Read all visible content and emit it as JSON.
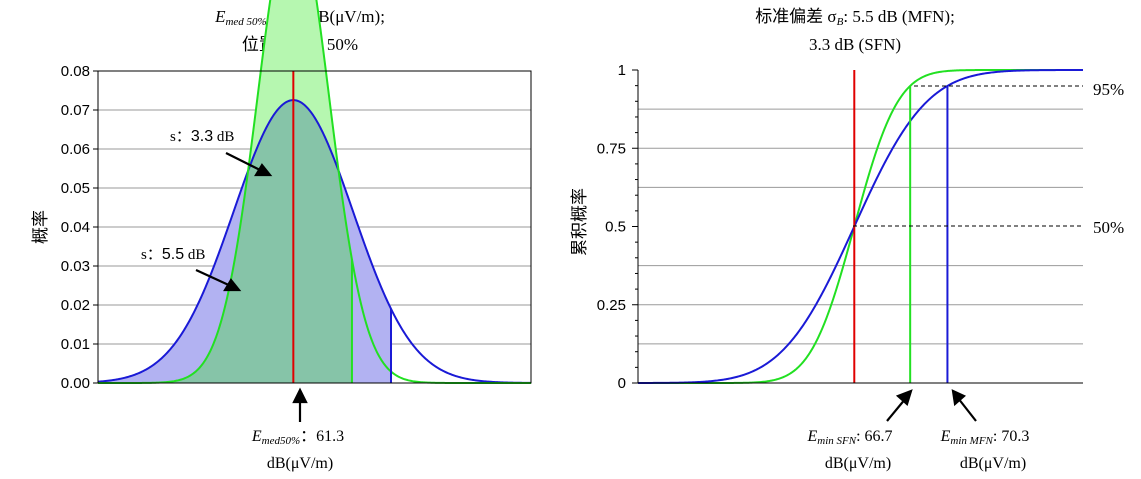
{
  "colors": {
    "red": "#e00000",
    "green": "#22e022",
    "blue": "#1a1ad6",
    "green_fill": "#b6f7b0",
    "blue_fill": "#b2b2f2",
    "overlap_fill": "#86c4a8",
    "grid": "#9a9a9a"
  },
  "chart_data": [
    {
      "type": "area",
      "title_line1": {
        "sym": "E",
        "sub": "med 50%",
        "value": ": 61.3 dB(μV/m);"
      },
      "title_line2": "位置概率：50%",
      "ylabel": "概率",
      "ylim": [
        0,
        0.08
      ],
      "yticks": [
        "0.00",
        "0.01",
        "0.02",
        "0.03",
        "0.04",
        "0.05",
        "0.06",
        "0.07",
        "0.08"
      ],
      "median": 61.3,
      "series": [
        {
          "name_prefix": "s：",
          "name_value": "3.3",
          "name_unit": " dB",
          "sigma": 3.3,
          "cut": 66.7
        },
        {
          "name_prefix": "s：",
          "name_value": "5.5",
          "name_unit": " dB",
          "sigma": 5.5,
          "cut": 70.3
        }
      ],
      "annotation": {
        "sym": "E",
        "sub": "med50%",
        "value": "：61.3",
        "unit": "dB(μV/m)"
      }
    },
    {
      "type": "line",
      "title_line1": {
        "prefix": "标准偏差 σ",
        "sub": "B",
        "value": ": 5.5 dB (MFN);"
      },
      "title_line2": "3.3 dB (SFN)",
      "ylabel": "累积概率",
      "ylim": [
        0,
        1
      ],
      "yticks": [
        "0",
        "0.25",
        "0.5",
        "0.75",
        "1"
      ],
      "right_labels": [
        "95%",
        "50%"
      ],
      "median": 61.3,
      "series": [
        {
          "sigma": 3.3,
          "cut": 66.7
        },
        {
          "sigma": 5.5,
          "cut": 70.3
        }
      ],
      "annotations": [
        {
          "sym": "E",
          "sub": "min SFN",
          "value": ": 66.7",
          "unit": "dB(μV/m)"
        },
        {
          "sym": "E",
          "sub": "min MFN",
          "value": ": 70.3",
          "unit": "dB(μV/m)"
        }
      ]
    }
  ]
}
